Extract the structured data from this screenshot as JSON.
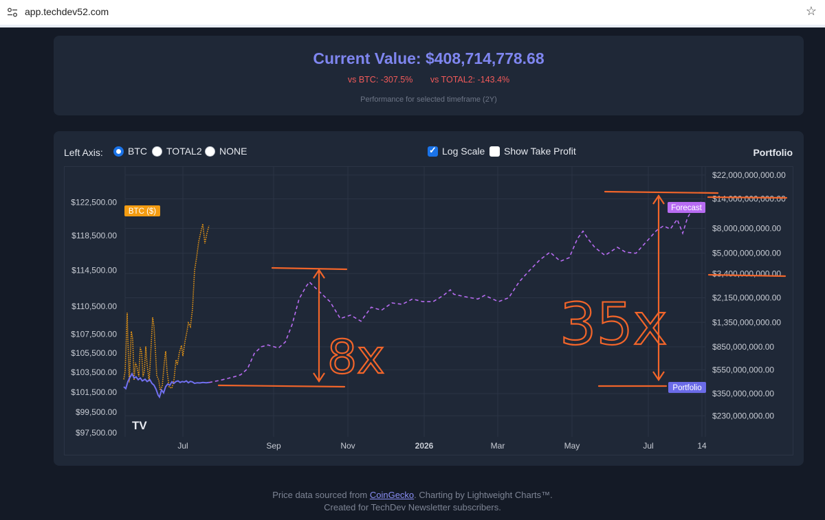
{
  "browser": {
    "url": "app.techdev52.com"
  },
  "summary": {
    "current_value": "Current Value: $408,714,778.68",
    "vs_btc": "vs BTC: -307.5%",
    "vs_total2": "vs TOTAL2: -143.4%",
    "note": "Performance for selected timeframe (2Y)"
  },
  "controls": {
    "left_axis_label": "Left Axis:",
    "options": [
      "BTC",
      "TOTAL2",
      "NONE"
    ],
    "selected": "BTC",
    "log_scale_label": "Log Scale",
    "log_scale_checked": true,
    "take_profit_label": "Show Take Profit",
    "take_profit_checked": false,
    "portfolio_title": "Portfolio"
  },
  "chart_data": {
    "type": "line",
    "log_scale": true,
    "grid": true,
    "x_ticks": [
      "Jul",
      "Sep",
      "Nov",
      "2026",
      "Mar",
      "May",
      "Jul",
      "14"
    ],
    "left_axis_ticks": [
      "$122,500.00",
      "$118,500.00",
      "$114,500.00",
      "$110,500.00",
      "$107,500.00",
      "$105,500.00",
      "$103,500.00",
      "$101,500.00",
      "$99,500.00",
      "$97,500.00"
    ],
    "right_axis_ticks": [
      "$22,000,000,000.00",
      "$14,000,000,000.00",
      "$8,000,000,000.00",
      "$5,000,000,000.00",
      "$3,400,000,000.00",
      "$2,150,000,000.00",
      "$1,350,000,000.00",
      "$850,000,000.00",
      "$550,000,000.00",
      "$350,000,000.00",
      "$230,000,000.00"
    ],
    "series": [
      {
        "name": "BTC ($)",
        "color": "#f39c12",
        "axis": "left",
        "style": "dotted",
        "points": [
          [
            0,
            102800
          ],
          [
            2,
            103600
          ],
          [
            4,
            107500
          ],
          [
            5,
            109800
          ],
          [
            6,
            107000
          ],
          [
            8,
            102500
          ],
          [
            10,
            106000
          ],
          [
            11,
            107800
          ],
          [
            13,
            107000
          ],
          [
            15,
            102700
          ],
          [
            17,
            104500
          ],
          [
            19,
            104100
          ],
          [
            22,
            103100
          ],
          [
            24,
            106100
          ],
          [
            26,
            105600
          ],
          [
            28,
            103100
          ],
          [
            30,
            103600
          ],
          [
            32,
            106200
          ],
          [
            34,
            104300
          ],
          [
            37,
            102600
          ],
          [
            40,
            106500
          ],
          [
            42,
            109300
          ],
          [
            44,
            108300
          ],
          [
            46,
            105800
          ],
          [
            48,
            103200
          ],
          [
            51,
            102700
          ],
          [
            53,
            101700
          ],
          [
            56,
            102100
          ],
          [
            59,
            104500
          ],
          [
            61,
            105700
          ],
          [
            63,
            103600
          ],
          [
            66,
            102000
          ],
          [
            70,
            101900
          ],
          [
            73,
            102700
          ],
          [
            76,
            104800
          ],
          [
            78,
            104300
          ],
          [
            81,
            105600
          ],
          [
            84,
            106300
          ],
          [
            86,
            105200
          ],
          [
            89,
            106700
          ],
          [
            92,
            107800
          ],
          [
            94,
            108700
          ],
          [
            97,
            108300
          ],
          [
            100,
            110200
          ],
          [
            103,
            114500
          ],
          [
            106,
            116000
          ],
          [
            109,
            117800
          ],
          [
            112,
            118900
          ],
          [
            115,
            119900
          ],
          [
            118,
            117600
          ],
          [
            121,
            118800
          ],
          [
            124,
            119700
          ]
        ]
      },
      {
        "name": "Portfolio",
        "color": "#7170f0",
        "axis": "right",
        "style": "solid",
        "points": [
          [
            0,
            398000000
          ],
          [
            3,
            385000000
          ],
          [
            6,
            440000000
          ],
          [
            9,
            475000000
          ],
          [
            12,
            510000000
          ],
          [
            15,
            470000000
          ],
          [
            18,
            480000000
          ],
          [
            21,
            455000000
          ],
          [
            24,
            470000000
          ],
          [
            27,
            445000000
          ],
          [
            31,
            460000000
          ],
          [
            34,
            440000000
          ],
          [
            38,
            455000000
          ],
          [
            41,
            425000000
          ],
          [
            44,
            410000000
          ],
          [
            47,
            380000000
          ],
          [
            50,
            340000000
          ],
          [
            52,
            328000000
          ],
          [
            55,
            375000000
          ],
          [
            58,
            355000000
          ],
          [
            61,
            400000000
          ],
          [
            64,
            420000000
          ],
          [
            67,
            410000000
          ],
          [
            70,
            438000000
          ],
          [
            73,
            425000000
          ],
          [
            76,
            440000000
          ],
          [
            79,
            445000000
          ],
          [
            82,
            432000000
          ],
          [
            85,
            440000000
          ],
          [
            88,
            436000000
          ],
          [
            91,
            445000000
          ],
          [
            94,
            430000000
          ],
          [
            97,
            441000000
          ],
          [
            100,
            436000000
          ],
          [
            103,
            425000000
          ],
          [
            107,
            430000000
          ],
          [
            111,
            428000000
          ],
          [
            115,
            432000000
          ],
          [
            120,
            430000000
          ],
          [
            124,
            432000000
          ]
        ]
      },
      {
        "name": "Forecast",
        "color": "#b86cf2",
        "axis": "right",
        "style": "dashed",
        "points": [
          [
            124,
            432000000
          ],
          [
            140,
            450000000
          ],
          [
            160,
            480000000
          ],
          [
            170,
            500000000
          ],
          [
            180,
            560000000
          ],
          [
            190,
            750000000
          ],
          [
            200,
            850000000
          ],
          [
            210,
            880000000
          ],
          [
            225,
            830000000
          ],
          [
            235,
            930000000
          ],
          [
            245,
            1300000000
          ],
          [
            255,
            2100000000
          ],
          [
            265,
            2650000000
          ],
          [
            270,
            2900000000
          ],
          [
            285,
            2400000000
          ],
          [
            300,
            2000000000
          ],
          [
            315,
            1450000000
          ],
          [
            330,
            1550000000
          ],
          [
            345,
            1380000000
          ],
          [
            360,
            1800000000
          ],
          [
            375,
            1700000000
          ],
          [
            390,
            1950000000
          ],
          [
            405,
            1900000000
          ],
          [
            420,
            2100000000
          ],
          [
            435,
            2000000000
          ],
          [
            450,
            2000000000
          ],
          [
            465,
            2250000000
          ],
          [
            475,
            2500000000
          ],
          [
            480,
            2300000000
          ],
          [
            495,
            2200000000
          ],
          [
            505,
            2150000000
          ],
          [
            515,
            2100000000
          ],
          [
            525,
            2250000000
          ],
          [
            545,
            2000000000
          ],
          [
            560,
            2150000000
          ],
          [
            575,
            2900000000
          ],
          [
            590,
            3600000000
          ],
          [
            605,
            4400000000
          ],
          [
            620,
            5100000000
          ],
          [
            635,
            4300000000
          ],
          [
            648,
            4600000000
          ],
          [
            660,
            6600000000
          ],
          [
            668,
            7600000000
          ],
          [
            675,
            6600000000
          ],
          [
            685,
            5600000000
          ],
          [
            700,
            4800000000
          ],
          [
            718,
            5600000000
          ],
          [
            730,
            5100000000
          ],
          [
            745,
            5000000000
          ],
          [
            760,
            6200000000
          ],
          [
            775,
            7700000000
          ],
          [
            785,
            8400000000
          ],
          [
            795,
            7900000000
          ],
          [
            805,
            9500000000
          ],
          [
            813,
            7300000000
          ],
          [
            820,
            9800000000
          ],
          [
            830,
            12200000000
          ],
          [
            840,
            13200000000
          ]
        ]
      }
    ],
    "labels": {
      "btc_tag": "BTC ($)",
      "forecast_tag": "Forecast",
      "portfolio_tag": "Portfolio"
    },
    "annotations": [
      {
        "text": "8x",
        "kind": "handwritten"
      },
      {
        "text": "35x",
        "kind": "handwritten"
      }
    ]
  },
  "footer": {
    "line1_pre": "Price data sourced from ",
    "line1_link": "CoinGecko",
    "line1_post": ". Charting by Lightweight Charts™.",
    "line2": "Created for TechDev Newsletter subscribers."
  },
  "colors": {
    "accent": "#7f86f0",
    "negative": "#f25a5a",
    "annotation": "#f2652a",
    "btc": "#f39c12",
    "forecast": "#b86cf2",
    "portfolio": "#7170f0"
  }
}
